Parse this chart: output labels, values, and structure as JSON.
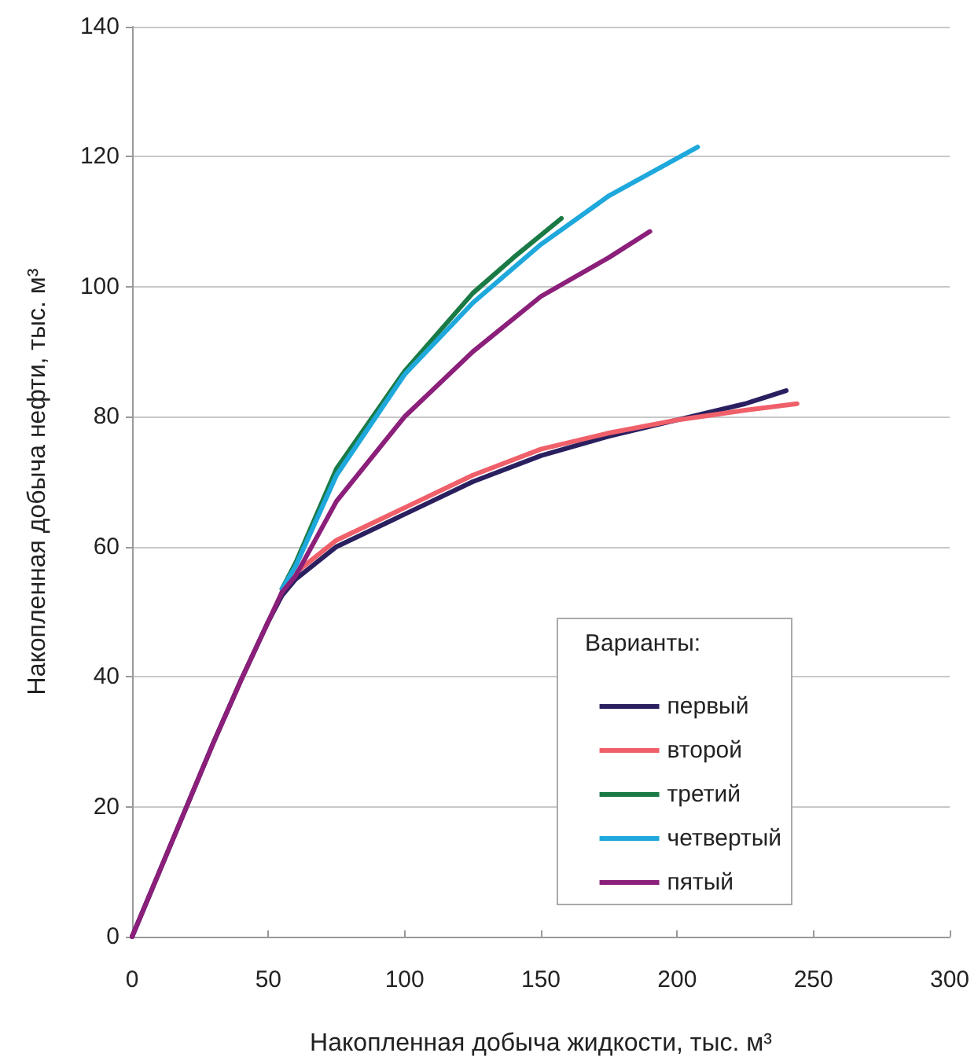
{
  "chart_data": {
    "type": "line",
    "xlabel": "Накопленная добыча жидкости, тыс. м³",
    "ylabel": "Накопленная добыча нефти, тыс. м³",
    "legend_title": "Варианты:",
    "legend": "bottom right",
    "grid": "y",
    "marker": "none",
    "line_style": "solid",
    "xlim": [
      0,
      300
    ],
    "xticks": [
      0,
      50,
      100,
      150,
      200,
      250,
      300
    ],
    "ylim": [
      0,
      140
    ],
    "yticks": [
      0,
      20,
      40,
      60,
      80,
      100,
      120,
      140
    ],
    "series": [
      {
        "name": "первый",
        "color": "#2a2060",
        "x": [
          0,
          10,
          20,
          30,
          40,
          50,
          55,
          60,
          75,
          100,
          125,
          150,
          175,
          200,
          225,
          240
        ],
        "values": [
          0,
          10,
          20,
          30,
          39.5,
          48.5,
          52.5,
          55,
          60,
          65,
          70,
          74,
          77,
          79.5,
          82,
          84
        ]
      },
      {
        "name": "второй",
        "color": "#f0606a",
        "x": [
          55,
          60,
          75,
          100,
          125,
          150,
          175,
          200,
          225,
          244
        ],
        "values": [
          53,
          56,
          61,
          66,
          71,
          75,
          77.5,
          79.5,
          81,
          82
        ]
      },
      {
        "name": "третий",
        "color": "#1a7a45",
        "x": [
          55,
          60,
          75,
          100,
          125,
          140,
          157.5
        ],
        "values": [
          53.5,
          57.5,
          72,
          87,
          99,
          104.5,
          110.5
        ]
      },
      {
        "name": "четвертый",
        "color": "#1ea8dc",
        "x": [
          55,
          60,
          75,
          100,
          125,
          150,
          175,
          207.5
        ],
        "values": [
          53.5,
          57,
          71,
          86.5,
          97.5,
          106.5,
          114,
          121.5
        ]
      },
      {
        "name": "пятый",
        "color": "#8b1f7a",
        "x": [
          0,
          10,
          20,
          30,
          40,
          50,
          55,
          60,
          75,
          100,
          125,
          150,
          175,
          190
        ],
        "values": [
          0,
          10,
          20,
          30,
          39.5,
          48.5,
          53,
          55.5,
          67,
          80,
          90,
          98.5,
          104.5,
          108.5
        ]
      }
    ]
  }
}
